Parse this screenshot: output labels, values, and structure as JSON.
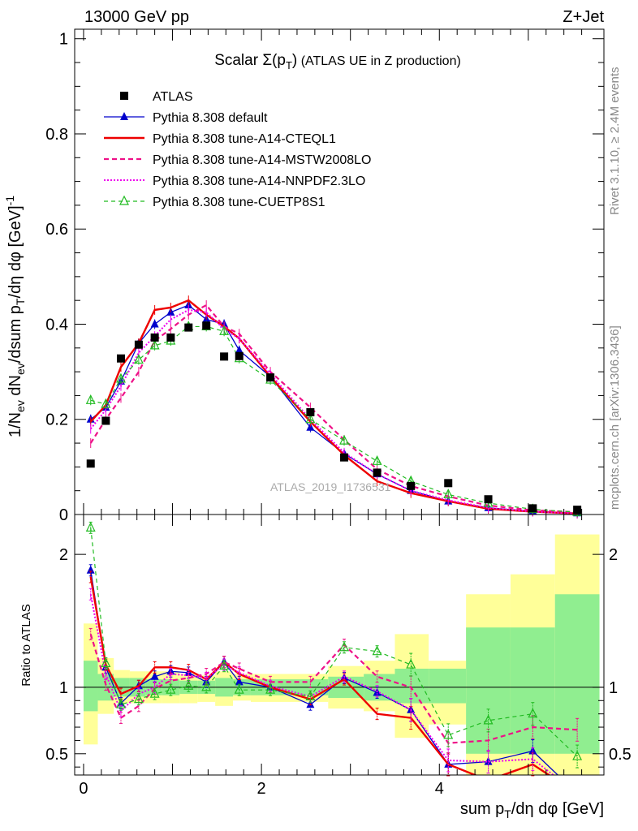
{
  "header": {
    "left": "13000 GeV pp",
    "right": "Z+Jet"
  },
  "side": {
    "rivet": "Rivet 3.1.10, ≥ 2.4M events",
    "mcplots": "mcplots.cern.ch [arXiv:1306.3436]"
  },
  "watermark": "ATLAS_2019_I1736531",
  "chart_data": {
    "type": "line",
    "title": "Scalar Σ(p_T) (ATLAS UE in Z production)",
    "xlabel": "sum p_T/dη dφ [GeV]",
    "ylabel": "1/N_ev dN_ev/dsum p_T/dη dφ [GeV]^-1",
    "ratio_ylabel": "Ratio to ATLAS",
    "xlim": [
      -0.1,
      5.85
    ],
    "ylim": [
      0,
      1.02
    ],
    "ratio_ylim": [
      0.34,
      2.3
    ],
    "main_yticks": [
      "0",
      "0.2",
      "0.4",
      "0.6",
      "0.8",
      "1"
    ],
    "ratio_yticks": [
      "0.5",
      "1",
      "2"
    ],
    "xticks": [
      "0",
      "2",
      "4"
    ],
    "legend_position": "top-left",
    "x": [
      0.08,
      0.25,
      0.42,
      0.62,
      0.8,
      0.98,
      1.18,
      1.38,
      1.58,
      1.75,
      2.1,
      2.55,
      2.93,
      3.3,
      3.68,
      4.1,
      4.55,
      5.05,
      5.55
    ],
    "atlas": [
      0.107,
      0.197,
      0.328,
      0.357,
      0.372,
      0.372,
      0.393,
      0.397,
      0.332,
      0.333,
      0.288,
      0.215,
      0.12,
      0.088,
      0.06,
      0.066,
      0.032,
      0.013,
      0.01
    ],
    "series": [
      {
        "name": "ATLAS",
        "color": "#000000",
        "style": "marker",
        "values": [
          0.107,
          0.197,
          0.328,
          0.357,
          0.372,
          0.372,
          0.393,
          0.397,
          0.332,
          0.333,
          0.288,
          0.215,
          0.12,
          0.088,
          0.06,
          0.066,
          0.032,
          0.013,
          0.01
        ]
      },
      {
        "name": "Pythia 8.308 default",
        "color": "#0000cc",
        "style": "solid-triangle",
        "values": [
          0.2,
          0.225,
          0.28,
          0.36,
          0.4,
          0.425,
          0.44,
          0.41,
          0.4,
          0.345,
          0.29,
          0.183,
          0.128,
          0.085,
          0.05,
          0.028,
          0.014,
          0.007,
          0.003
        ]
      },
      {
        "name": "Pythia 8.308 tune-A14-CTEQL1",
        "color": "#ee0000",
        "style": "solid-thick",
        "values": [
          0.195,
          0.23,
          0.31,
          0.36,
          0.43,
          0.435,
          0.45,
          0.42,
          0.395,
          0.37,
          0.29,
          0.195,
          0.125,
          0.07,
          0.045,
          0.028,
          0.012,
          0.006,
          0.002
        ]
      },
      {
        "name": "Pythia 8.308 tune-A14-MSTW2008LO",
        "color": "#ee1188",
        "style": "dashed",
        "values": [
          0.15,
          0.2,
          0.245,
          0.3,
          0.365,
          0.39,
          0.42,
          0.44,
          0.395,
          0.38,
          0.3,
          0.225,
          0.157,
          0.095,
          0.06,
          0.038,
          0.019,
          0.009,
          0.005
        ]
      },
      {
        "name": "Pythia 8.308 tune-A14-NNPDF2.3LO",
        "color": "#ee00ee",
        "style": "dotted",
        "values": [
          0.18,
          0.22,
          0.27,
          0.34,
          0.375,
          0.41,
          0.43,
          0.425,
          0.39,
          0.37,
          0.295,
          0.2,
          0.13,
          0.085,
          0.05,
          0.03,
          0.014,
          0.006,
          0.002
        ]
      },
      {
        "name": "Pythia 8.308 tune-CUETP8S1",
        "color": "#22bb22",
        "style": "dashed-open-triangle",
        "values": [
          0.24,
          0.232,
          0.285,
          0.325,
          0.355,
          0.365,
          0.395,
          0.395,
          0.385,
          0.328,
          0.283,
          0.2,
          0.155,
          0.112,
          0.07,
          0.042,
          0.024,
          0.011,
          0.0048
        ]
      }
    ],
    "ratios": [
      {
        "name": "Pythia 8.308 default",
        "values": [
          1.88,
          1.15,
          0.88,
          1.01,
          1.08,
          1.12,
          1.11,
          1.04,
          1.19,
          1.04,
          1.0,
          0.87,
          1.07,
          0.96,
          0.83,
          0.42,
          0.44,
          0.52,
          0.2
        ]
      },
      {
        "name": "Pythia 8.308 tune-A14-CTEQL1",
        "values": [
          1.83,
          1.17,
          0.95,
          1.01,
          1.15,
          1.15,
          1.13,
          1.06,
          1.19,
          1.1,
          1.0,
          0.91,
          1.06,
          0.8,
          0.77,
          0.42,
          0.3,
          0.42,
          0.2
        ]
      },
      {
        "name": "Pythia 8.308 tune-A14-MSTW2008LO",
        "values": [
          1.4,
          1.02,
          0.77,
          0.86,
          0.99,
          1.05,
          1.07,
          1.1,
          1.19,
          1.14,
          1.04,
          1.04,
          1.32,
          1.08,
          1.0,
          0.58,
          0.6,
          0.7,
          0.68
        ]
      },
      {
        "name": "Pythia 8.308 tune-A14-NNPDF2.3LO",
        "values": [
          1.7,
          1.1,
          0.82,
          0.95,
          1.0,
          1.1,
          1.09,
          1.07,
          1.17,
          1.11,
          1.01,
          0.93,
          1.08,
          0.97,
          0.83,
          0.45,
          0.44,
          0.46,
          0.2
        ]
      },
      {
        "name": "Pythia 8.308 tune-CUETP8S1",
        "values": [
          2.2,
          1.18,
          0.87,
          0.91,
          0.95,
          0.98,
          1.01,
          1.0,
          1.16,
          0.98,
          0.98,
          0.93,
          1.3,
          1.27,
          1.17,
          0.64,
          0.75,
          0.8,
          0.48
        ]
      }
    ],
    "uncertainty_bins": [
      {
        "lo": 0.0,
        "hi": 0.16,
        "inner": [
          0.82,
          1.2
        ],
        "outer": [
          0.57,
          1.48
        ]
      },
      {
        "lo": 0.16,
        "hi": 0.34,
        "inner": [
          0.9,
          1.1
        ],
        "outer": [
          0.8,
          1.22
        ]
      },
      {
        "lo": 0.34,
        "hi": 0.52,
        "inner": [
          0.93,
          1.07
        ],
        "outer": [
          0.88,
          1.13
        ]
      },
      {
        "lo": 0.52,
        "hi": 0.7,
        "inner": [
          0.93,
          1.07
        ],
        "outer": [
          0.88,
          1.12
        ]
      },
      {
        "lo": 0.7,
        "hi": 0.88,
        "inner": [
          0.94,
          1.06
        ],
        "outer": [
          0.88,
          1.12
        ]
      },
      {
        "lo": 0.88,
        "hi": 1.08,
        "inner": [
          0.94,
          1.06
        ],
        "outer": [
          0.88,
          1.12
        ]
      },
      {
        "lo": 1.08,
        "hi": 1.28,
        "inner": [
          0.95,
          1.05
        ],
        "outer": [
          0.88,
          1.1
        ]
      },
      {
        "lo": 1.28,
        "hi": 1.48,
        "inner": [
          0.95,
          1.05
        ],
        "outer": [
          0.89,
          1.09
        ]
      },
      {
        "lo": 1.48,
        "hi": 1.68,
        "inner": [
          0.93,
          1.07
        ],
        "outer": [
          0.86,
          1.12
        ]
      },
      {
        "lo": 1.68,
        "hi": 1.88,
        "inner": [
          0.94,
          1.06
        ],
        "outer": [
          0.9,
          1.1
        ]
      },
      {
        "lo": 1.88,
        "hi": 2.3,
        "inner": [
          0.94,
          1.06
        ],
        "outer": [
          0.89,
          1.1
        ]
      },
      {
        "lo": 2.3,
        "hi": 2.75,
        "inner": [
          0.94,
          1.06
        ],
        "outer": [
          0.89,
          1.1
        ]
      },
      {
        "lo": 2.75,
        "hi": 3.15,
        "inner": [
          0.92,
          1.08
        ],
        "outer": [
          0.84,
          1.16
        ]
      },
      {
        "lo": 3.15,
        "hi": 3.5,
        "inner": [
          0.9,
          1.1
        ],
        "outer": [
          0.82,
          1.2
        ]
      },
      {
        "lo": 3.5,
        "hi": 3.88,
        "inner": [
          0.88,
          1.14
        ],
        "outer": [
          0.62,
          1.4
        ]
      },
      {
        "lo": 3.88,
        "hi": 4.3,
        "inner": [
          0.88,
          1.14
        ],
        "outer": [
          0.72,
          1.2
        ]
      },
      {
        "lo": 4.3,
        "hi": 4.8,
        "inner": [
          0.5,
          1.45
        ],
        "outer": [
          0.3,
          1.7
        ]
      },
      {
        "lo": 4.8,
        "hi": 5.3,
        "inner": [
          0.5,
          1.45
        ],
        "outer": [
          0.3,
          1.85
        ]
      },
      {
        "lo": 5.3,
        "hi": 5.8,
        "inner": [
          0.5,
          1.7
        ],
        "outer": [
          0.3,
          2.15
        ]
      }
    ]
  }
}
